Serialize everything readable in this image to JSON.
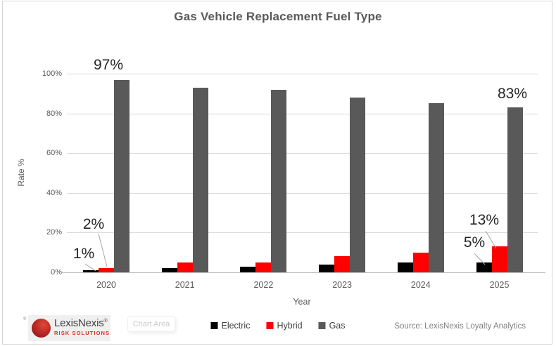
{
  "chart_data": {
    "type": "bar",
    "title": "Gas Vehicle Replacement Fuel Type",
    "xlabel": "Year",
    "ylabel": "Rate %",
    "categories": [
      "2020",
      "2021",
      "2022",
      "2023",
      "2024",
      "2025"
    ],
    "series": [
      {
        "name": "Electric",
        "color": "#000000",
        "values": [
          1,
          2,
          3,
          4,
          5,
          5
        ]
      },
      {
        "name": "Hybrid",
        "color": "#ff0000",
        "values": [
          2,
          5,
          5,
          8,
          10,
          13
        ]
      },
      {
        "name": "Gas",
        "color": "#595959",
        "values": [
          97,
          93,
          92,
          88,
          85,
          83
        ]
      }
    ],
    "ylim": [
      0,
      100
    ],
    "yticks": [
      "0%",
      "20%",
      "40%",
      "60%",
      "80%",
      "100%"
    ],
    "grid": true,
    "legend_position": "bottom",
    "annotations": [
      {
        "text": "97%",
        "year": "2020",
        "series": "Gas"
      },
      {
        "text": "2%",
        "year": "2020",
        "series": "Hybrid"
      },
      {
        "text": "1%",
        "year": "2020",
        "series": "Electric"
      },
      {
        "text": "83%",
        "year": "2025",
        "series": "Gas"
      },
      {
        "text": "13%",
        "year": "2025",
        "series": "Hybrid"
      },
      {
        "text": "5%",
        "year": "2025",
        "series": "Electric"
      }
    ]
  },
  "branding": {
    "logo_name": "LexisNexis",
    "logo_reg": "®",
    "logo_sub": "RISK SOLUTIONS"
  },
  "footer": {
    "chart_area_label": "Chart Area",
    "source": "Source: LexisNexis Loyalty Analytics"
  },
  "colors": {
    "electric": "#000000",
    "hybrid": "#ff0000",
    "gas": "#595959",
    "gridline": "#d9d9d9",
    "annotation_text": "#262626"
  }
}
